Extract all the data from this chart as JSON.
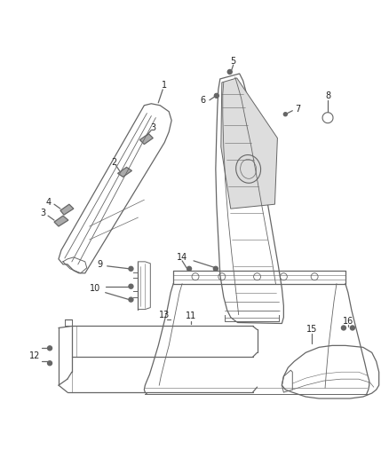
{
  "background_color": "#ffffff",
  "line_color": "#666666",
  "label_color": "#222222",
  "fig_width": 4.38,
  "fig_height": 5.33,
  "dpi": 100
}
